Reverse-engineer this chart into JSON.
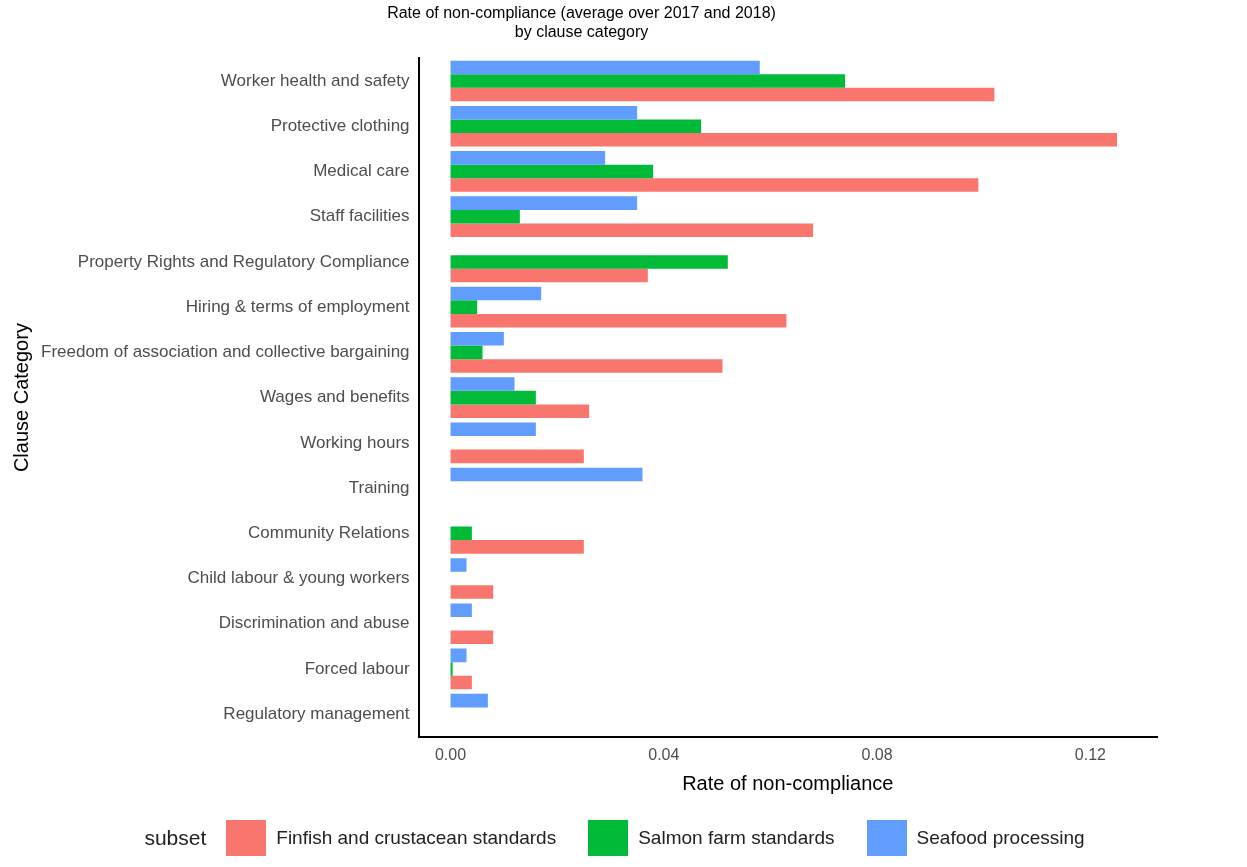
{
  "chart_data": {
    "type": "bar",
    "orientation": "horizontal",
    "title": "Rate of non-compliance (average over 2017 and 2018)\nby clause category",
    "xlabel": "Rate of non-compliance",
    "ylabel": "Clause Category",
    "legend_title": "subset",
    "legend": "bottom",
    "categories": [
      "Worker health and safety",
      "Protective clothing",
      "Medical care",
      "Staff facilities",
      "Property Rights and Regulatory Compliance",
      "Hiring & terms of employment",
      "Freedom of association and collective bargaining",
      "Wages and benefits",
      "Working hours",
      "Training",
      "Community Relations",
      "Child labour & young workers",
      "Discrimination and abuse",
      "Forced labour",
      "Regulatory management"
    ],
    "series": [
      {
        "name": "Finfish and crustacean standards",
        "color": "#f8766d",
        "values": [
          0.102,
          0.125,
          0.099,
          0.068,
          0.037,
          0.063,
          0.051,
          0.026,
          0.025,
          null,
          0.025,
          0.008,
          0.008,
          0.004,
          null
        ]
      },
      {
        "name": "Salmon farm standards",
        "color": "#00ba38",
        "values": [
          0.074,
          0.047,
          0.038,
          0.013,
          0.052,
          0.005,
          0.006,
          0.016,
          null,
          null,
          0.004,
          null,
          null,
          0.0004,
          null
        ]
      },
      {
        "name": "Seafood processing",
        "color": "#619cff",
        "values": [
          0.058,
          0.035,
          0.029,
          0.035,
          null,
          0.017,
          0.01,
          0.012,
          0.016,
          0.036,
          null,
          0.003,
          0.004,
          0.003,
          0.007
        ]
      }
    ],
    "xlim": [
      -0.006,
      0.1325
    ],
    "xticks": [
      {
        "value": 0,
        "label": "0.00"
      },
      0.04,
      0.08,
      0.12
    ]
  }
}
